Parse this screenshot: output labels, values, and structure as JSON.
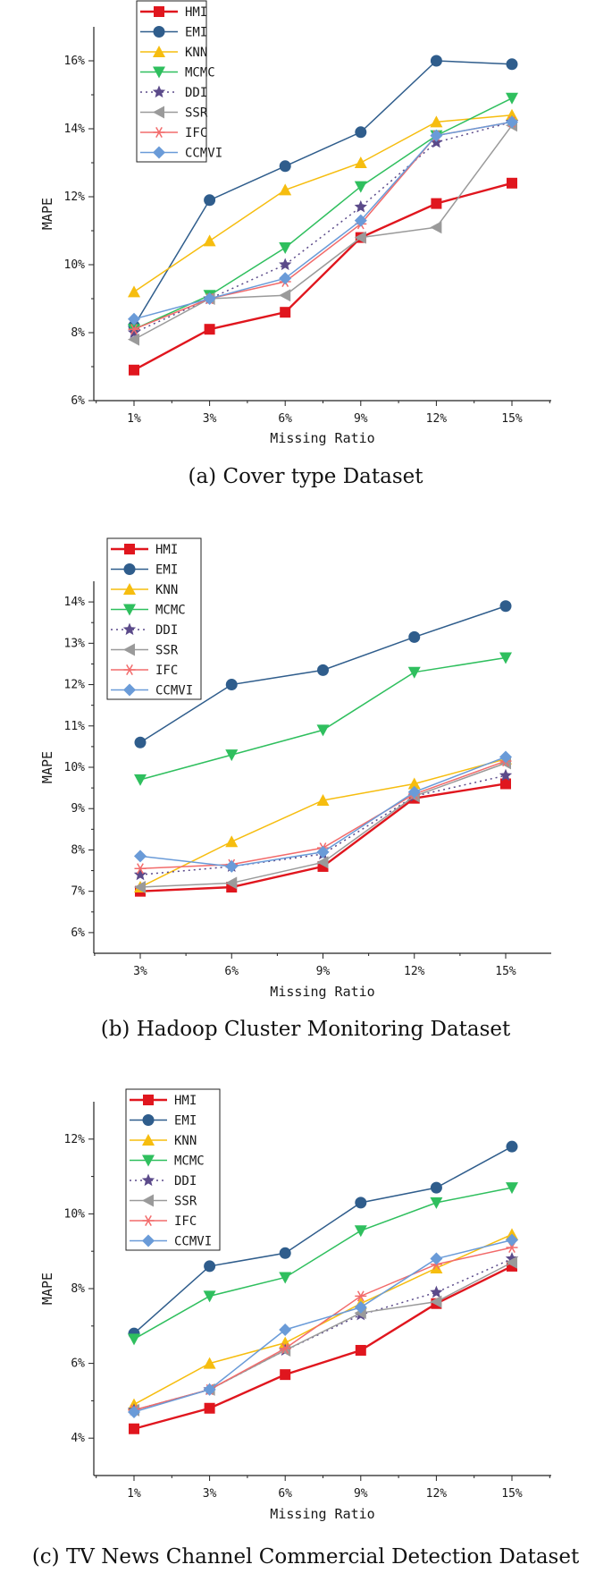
{
  "legend_order": [
    "HMI",
    "EMI",
    "KNN",
    "MCMC",
    "DDI",
    "SSR",
    "IFC",
    "CCMVI"
  ],
  "series_styles": {
    "HMI": {
      "color": "#e0161e",
      "marker": "square",
      "dash": ""
    },
    "EMI": {
      "color": "#2f5d8c",
      "marker": "circle",
      "dash": ""
    },
    "KNN": {
      "color": "#f6bd0f",
      "marker": "triangle-up",
      "dash": ""
    },
    "MCMC": {
      "color": "#2fbf5e",
      "marker": "triangle-down",
      "dash": ""
    },
    "DDI": {
      "color": "#5b4a8a",
      "marker": "star",
      "dash": "2,4"
    },
    "SSR": {
      "color": "#9a9a9a",
      "marker": "triangle-left",
      "dash": ""
    },
    "IFC": {
      "color": "#f26b6b",
      "marker": "asterisk",
      "dash": ""
    },
    "CCMVI": {
      "color": "#6a9bd8",
      "marker": "diamond",
      "dash": ""
    }
  },
  "chart_data": [
    {
      "type": "line",
      "caption": "(a)  Cover type Dataset",
      "xlabel": "Missing Ratio",
      "ylabel": "MAPE",
      "categories": [
        "1%",
        "3%",
        "6%",
        "9%",
        "12%",
        "15%"
      ],
      "ylim": [
        6,
        17
      ],
      "yticks": [
        6,
        8,
        10,
        12,
        14,
        16
      ],
      "ytick_labels": [
        "6%",
        "8%",
        "10%",
        "12%",
        "14%",
        "16%"
      ],
      "legend_position": "top-left",
      "series": [
        {
          "name": "HMI",
          "values": [
            6.9,
            8.1,
            8.6,
            10.8,
            11.8,
            12.4
          ]
        },
        {
          "name": "EMI",
          "values": [
            8.2,
            11.9,
            12.9,
            13.9,
            16.0,
            15.9
          ]
        },
        {
          "name": "KNN",
          "values": [
            9.2,
            10.7,
            12.2,
            13.0,
            14.2,
            14.4
          ]
        },
        {
          "name": "MCMC",
          "values": [
            8.1,
            9.1,
            10.5,
            12.3,
            13.8,
            14.9
          ]
        },
        {
          "name": "DDI",
          "values": [
            8.0,
            9.0,
            10.0,
            11.7,
            13.6,
            14.2
          ]
        },
        {
          "name": "SSR",
          "values": [
            7.8,
            9.0,
            9.1,
            10.8,
            11.1,
            14.1
          ]
        },
        {
          "name": "IFC",
          "values": [
            8.1,
            9.0,
            9.5,
            11.2,
            13.8,
            14.2
          ]
        },
        {
          "name": "CCMVI",
          "values": [
            8.4,
            9.0,
            9.6,
            11.3,
            13.8,
            14.2
          ]
        }
      ]
    },
    {
      "type": "line",
      "caption": "(b)  Hadoop Cluster Monitoring Dataset",
      "xlabel": "Missing Ratio",
      "ylabel": "MAPE",
      "categories": [
        "3%",
        "6%",
        "9%",
        "12%",
        "15%"
      ],
      "ylim": [
        5.5,
        14.5
      ],
      "yticks": [
        6,
        7,
        8,
        9,
        10,
        11,
        12,
        13,
        14
      ],
      "ytick_labels": [
        "6%",
        "7%",
        "8%",
        "9%",
        "10%",
        "11%",
        "12%",
        "13%",
        "14%"
      ],
      "legend_position": "top-left",
      "series": [
        {
          "name": "HMI",
          "values": [
            7.0,
            7.1,
            7.6,
            9.25,
            9.6
          ]
        },
        {
          "name": "EMI",
          "values": [
            10.6,
            12.0,
            12.35,
            13.15,
            13.9
          ]
        },
        {
          "name": "KNN",
          "values": [
            7.1,
            8.2,
            9.2,
            9.6,
            10.2
          ]
        },
        {
          "name": "MCMC",
          "values": [
            9.7,
            10.3,
            10.9,
            12.3,
            12.65
          ]
        },
        {
          "name": "DDI",
          "values": [
            7.4,
            7.6,
            7.9,
            9.3,
            9.8
          ]
        },
        {
          "name": "SSR",
          "values": [
            7.1,
            7.2,
            7.7,
            9.3,
            10.1
          ]
        },
        {
          "name": "IFC",
          "values": [
            7.55,
            7.65,
            8.05,
            9.35,
            10.15
          ]
        },
        {
          "name": "CCMVI",
          "values": [
            7.85,
            7.6,
            7.95,
            9.4,
            10.25
          ]
        }
      ]
    },
    {
      "type": "line",
      "caption": "(c)  TV News Channel Commercial Detection Dataset",
      "xlabel": "Missing Ratio",
      "ylabel": "MAPE",
      "categories": [
        "1%",
        "3%",
        "6%",
        "9%",
        "12%",
        "15%"
      ],
      "ylim": [
        3,
        13
      ],
      "yticks": [
        4,
        6,
        8,
        10,
        12
      ],
      "ytick_labels": [
        "4%",
        "6%",
        "8%",
        "10%",
        "12%"
      ],
      "legend_position": "top-left",
      "series": [
        {
          "name": "HMI",
          "values": [
            4.25,
            4.8,
            5.7,
            6.35,
            7.6,
            8.6
          ]
        },
        {
          "name": "EMI",
          "values": [
            6.8,
            8.6,
            8.95,
            10.3,
            10.7,
            11.8
          ]
        },
        {
          "name": "KNN",
          "values": [
            4.9,
            6.0,
            6.55,
            7.6,
            8.55,
            9.45
          ]
        },
        {
          "name": "MCMC",
          "values": [
            6.65,
            7.8,
            8.3,
            9.55,
            10.3,
            10.7
          ]
        },
        {
          "name": "DDI",
          "values": [
            4.75,
            5.3,
            6.35,
            7.3,
            7.9,
            8.8
          ]
        },
        {
          "name": "SSR",
          "values": [
            4.75,
            5.3,
            6.35,
            7.35,
            7.65,
            8.7
          ]
        },
        {
          "name": "IFC",
          "values": [
            4.75,
            5.3,
            6.4,
            7.8,
            8.65,
            9.1
          ]
        },
        {
          "name": "CCMVI",
          "values": [
            4.7,
            5.3,
            6.9,
            7.5,
            8.8,
            9.3
          ]
        }
      ]
    }
  ]
}
